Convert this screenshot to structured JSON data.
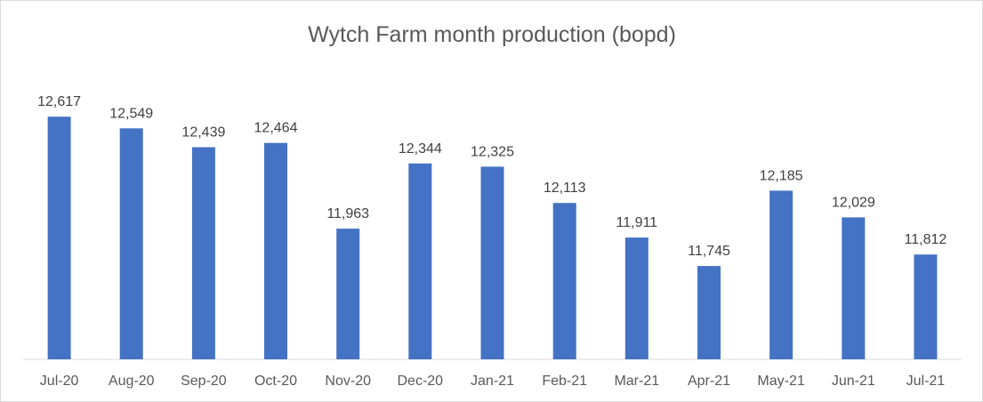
{
  "chart_data": {
    "type": "bar",
    "title": "Wytch Farm month production (bopd)",
    "categories": [
      "Jul-20",
      "Aug-20",
      "Sep-20",
      "Oct-20",
      "Nov-20",
      "Dec-20",
      "Jan-21",
      "Feb-21",
      "Mar-21",
      "Apr-21",
      "May-21",
      "Jun-21",
      "Jul-21"
    ],
    "values": [
      12617,
      12549,
      12439,
      12464,
      11963,
      12344,
      12325,
      12113,
      11911,
      11745,
      12185,
      12029,
      11812
    ],
    "value_labels": [
      "12,617",
      "12,549",
      "12,439",
      "12,464",
      "11,963",
      "12,344",
      "12,325",
      "12,113",
      "11,911",
      "11,745",
      "12,185",
      "12,029",
      "11,812"
    ],
    "xlabel": "",
    "ylabel": "",
    "ylim": [
      11200,
      12800
    ],
    "grid": false,
    "legend": "none",
    "bar_color": "#4472c4",
    "axis_color": "#d9d9d9"
  }
}
